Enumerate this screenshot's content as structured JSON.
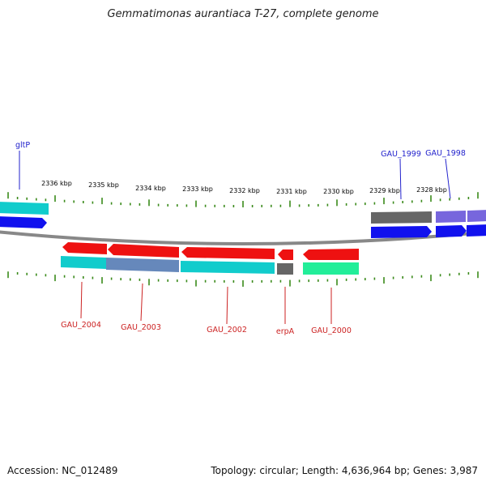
{
  "title": "Gemmatimonas aurantiaca T-27, complete genome",
  "accession": "Accession: NC_012489",
  "topology": "Topology: circular; Length: 4,636,964 bp; Genes: 3,987",
  "ticks": [
    "2336 kbp",
    "2335 kbp",
    "2334 kbp",
    "2333 kbp",
    "2332 kbp",
    "2331 kbp",
    "2330 kbp",
    "2329 kbp",
    "2328 kbp"
  ],
  "top_labels": [
    "gltP",
    "GAU_1999",
    "GAU_1998"
  ],
  "bottom_labels": [
    "GAU_2004",
    "GAU_2003",
    "GAU_2002",
    "erpA",
    "GAU_2000"
  ],
  "colors": {
    "red": "#ee1111",
    "cyan": "#11cccc",
    "blue": "#1111ee",
    "gray": "#666666",
    "slate_blue": "#7766dd",
    "green": "#22ee99",
    "tick": "#3a8a1a",
    "label_blue": "#2222cc",
    "label_red": "#cc2222"
  }
}
